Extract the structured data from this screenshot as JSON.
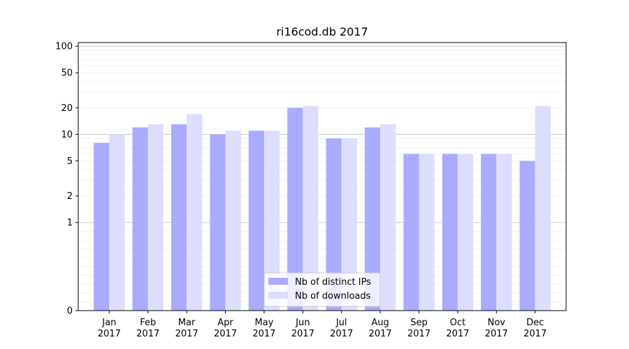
{
  "chart_data": {
    "type": "bar",
    "title": "ri16cod.db 2017",
    "categories": [
      [
        "Jan",
        "2017"
      ],
      [
        "Feb",
        "2017"
      ],
      [
        "Mar",
        "2017"
      ],
      [
        "Apr",
        "2017"
      ],
      [
        "May",
        "2017"
      ],
      [
        "Jun",
        "2017"
      ],
      [
        "Jul",
        "2017"
      ],
      [
        "Aug",
        "2017"
      ],
      [
        "Sep",
        "2017"
      ],
      [
        "Oct",
        "2017"
      ],
      [
        "Nov",
        "2017"
      ],
      [
        "Dec",
        "2017"
      ]
    ],
    "series": [
      {
        "name": "Nb of distinct IPs",
        "color": "#aaaaff",
        "values": [
          8,
          12,
          13,
          10,
          11,
          20,
          9,
          12,
          6,
          6,
          6,
          5
        ]
      },
      {
        "name": "Nb of downloads",
        "color": "#ddddff",
        "values": [
          10,
          13,
          17,
          11,
          11,
          21,
          9,
          13,
          6,
          6,
          6,
          21
        ]
      }
    ],
    "y_scale": "symlog",
    "y_ticks": [
      0,
      1,
      2,
      5,
      10,
      20,
      50,
      100
    ],
    "y_tick_labels": [
      "0",
      "1",
      "2",
      "5",
      "10",
      "20",
      "50",
      "100"
    ],
    "ylim": [
      0,
      110
    ],
    "xlabel": "",
    "ylabel": "",
    "grid": true,
    "legend_position": "lower center"
  }
}
